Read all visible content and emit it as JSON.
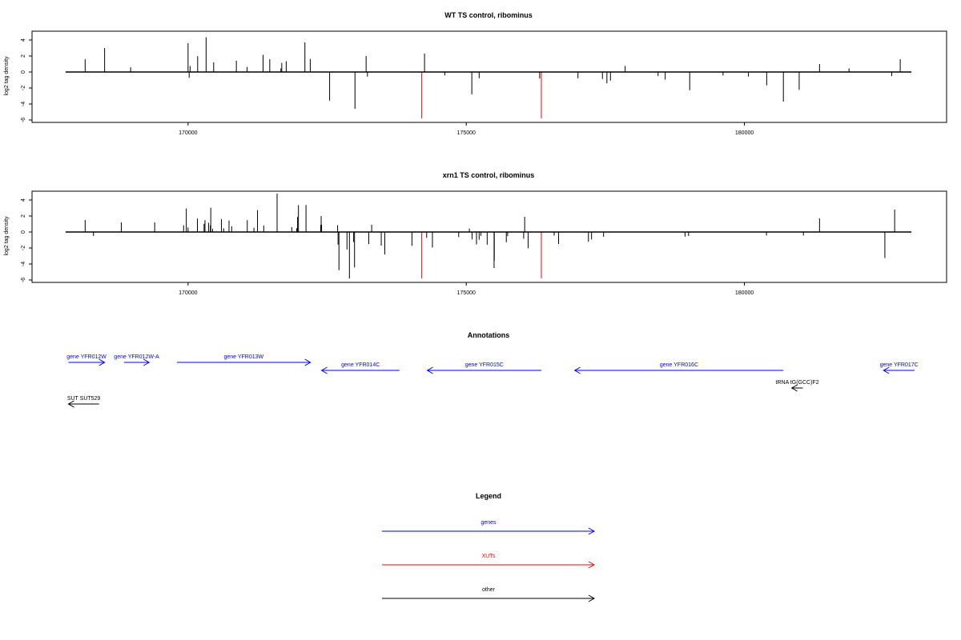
{
  "colors": {
    "genes": "#0000ff",
    "XUTs": "#ff0000",
    "other": "#000000",
    "axis": "#000000"
  },
  "chart_data": [
    {
      "type": "bar",
      "title": "WT TS control, ribominus",
      "ylabel": "log2 tag density",
      "xlim": [
        167800,
        183000
      ],
      "ylim": [
        -6,
        5
      ],
      "y_ticks": [
        4,
        2,
        0,
        -2,
        -4,
        -6
      ],
      "x_ticks": [
        170000,
        175000,
        180000
      ],
      "seed": 11,
      "profile": [
        {
          "from": 168000,
          "to": 169300,
          "density": 0.004,
          "pos": 0.8,
          "amp": 2.5
        },
        {
          "from": 169900,
          "to": 172400,
          "density": 0.03,
          "pos": 0.98,
          "amp": 3.0
        },
        {
          "from": 172400,
          "to": 173600,
          "density": 0.025,
          "pos": 0.08,
          "amp": 3.4
        },
        {
          "from": 173600,
          "to": 177000,
          "density": 0.006,
          "pos": 0.08,
          "amp": 1.8
        },
        {
          "from": 177000,
          "to": 181200,
          "density": 0.014,
          "pos": 0.04,
          "amp": 2.2
        },
        {
          "from": 181200,
          "to": 182200,
          "density": 0.002,
          "pos": 0.6,
          "amp": 1.0
        },
        {
          "from": 182200,
          "to": 182900,
          "density": 0.012,
          "pos": 0.2,
          "amp": 1.8
        }
      ],
      "highlights": [
        {
          "x": 174200,
          "y": -5.8
        },
        {
          "x": 176350,
          "y": -5.8
        }
      ],
      "extra": [
        {
          "x": 168150,
          "y": 1.6
        },
        {
          "x": 168500,
          "y": 3.0
        },
        {
          "x": 170000,
          "y": 3.6
        },
        {
          "x": 172100,
          "y": 3.7
        },
        {
          "x": 173200,
          "y": 2.0
        },
        {
          "x": 174250,
          "y": 2.3
        },
        {
          "x": 181350,
          "y": 1.0
        },
        {
          "x": 182800,
          "y": 1.6
        },
        {
          "x": 173000,
          "y": -4.6
        },
        {
          "x": 180700,
          "y": -3.7
        },
        {
          "x": 175100,
          "y": -2.8
        }
      ]
    },
    {
      "type": "bar",
      "title": "xrn1 TS control, ribominus",
      "ylabel": "log2 tag density",
      "xlim": [
        167800,
        183000
      ],
      "ylim": [
        -6,
        5
      ],
      "y_ticks": [
        4,
        2,
        0,
        -2,
        -4,
        -6
      ],
      "x_ticks": [
        170000,
        175000,
        180000
      ],
      "seed": 29,
      "profile": [
        {
          "from": 168000,
          "to": 169700,
          "density": 0.004,
          "pos": 0.7,
          "amp": 1.4
        },
        {
          "from": 169800,
          "to": 172400,
          "density": 0.07,
          "pos": 0.98,
          "amp": 3.6
        },
        {
          "from": 172400,
          "to": 173800,
          "density": 0.06,
          "pos": 0.03,
          "amp": 4.0
        },
        {
          "from": 173800,
          "to": 176500,
          "density": 0.04,
          "pos": 0.05,
          "amp": 3.0
        },
        {
          "from": 176500,
          "to": 181300,
          "density": 0.016,
          "pos": 0.03,
          "amp": 2.0
        },
        {
          "from": 181300,
          "to": 182100,
          "density": 0.002,
          "pos": 0.6,
          "amp": 1.0
        },
        {
          "from": 182100,
          "to": 182900,
          "density": 0.05,
          "pos": 0.1,
          "amp": 3.0
        }
      ],
      "highlights": [
        {
          "x": 174200,
          "y": -5.8
        },
        {
          "x": 176350,
          "y": -5.8
        }
      ],
      "extra": [
        {
          "x": 168150,
          "y": 1.5
        },
        {
          "x": 168300,
          "y": -0.5
        },
        {
          "x": 168800,
          "y": 1.2
        },
        {
          "x": 169400,
          "y": 1.2
        },
        {
          "x": 171600,
          "y": 4.8
        },
        {
          "x": 173300,
          "y": 0.9
        },
        {
          "x": 176050,
          "y": 1.9
        },
        {
          "x": 181350,
          "y": 1.7
        },
        {
          "x": 182700,
          "y": 2.8
        },
        {
          "x": 172900,
          "y": -5.8
        },
        {
          "x": 175500,
          "y": -4.5
        }
      ]
    }
  ],
  "annotations": {
    "title": "Annotations",
    "xlim": [
      167800,
      183000
    ],
    "rows": [
      [
        {
          "label": "gene YFR012W",
          "start": 167850,
          "end": 168500,
          "dir": "right",
          "kind": "genes"
        },
        {
          "label": "gene YFR012W-A",
          "start": 168850,
          "end": 169300,
          "dir": "right",
          "kind": "genes"
        },
        {
          "label": "gene YFR013W",
          "start": 169800,
          "end": 172200,
          "dir": "right",
          "kind": "genes"
        }
      ],
      [
        {
          "label": "gene YFR014C",
          "start": 172400,
          "end": 173800,
          "dir": "left",
          "kind": "genes"
        },
        {
          "label": "gene YFR015C",
          "start": 174300,
          "end": 176350,
          "dir": "left",
          "kind": "genes"
        },
        {
          "label": "gene YFR016C",
          "start": 176950,
          "end": 180700,
          "dir": "left",
          "kind": "genes"
        },
        {
          "label": "gene YFR017C",
          "start": 182500,
          "end": 183100,
          "dir": "left",
          "kind": "genes"
        }
      ],
      [
        {
          "label": "tRNA tG(GCC)F2",
          "start": 180850,
          "end": 181050,
          "dir": "left",
          "kind": "other"
        }
      ],
      [
        {
          "label": "SUT SUT529",
          "start": 167850,
          "end": 168400,
          "dir": "left",
          "kind": "other"
        }
      ]
    ]
  },
  "legend": {
    "title": "Legend",
    "items": [
      {
        "label": "genes",
        "kind": "genes"
      },
      {
        "label": "XUTs",
        "kind": "XUTs"
      },
      {
        "label": "other",
        "kind": "other"
      }
    ]
  }
}
